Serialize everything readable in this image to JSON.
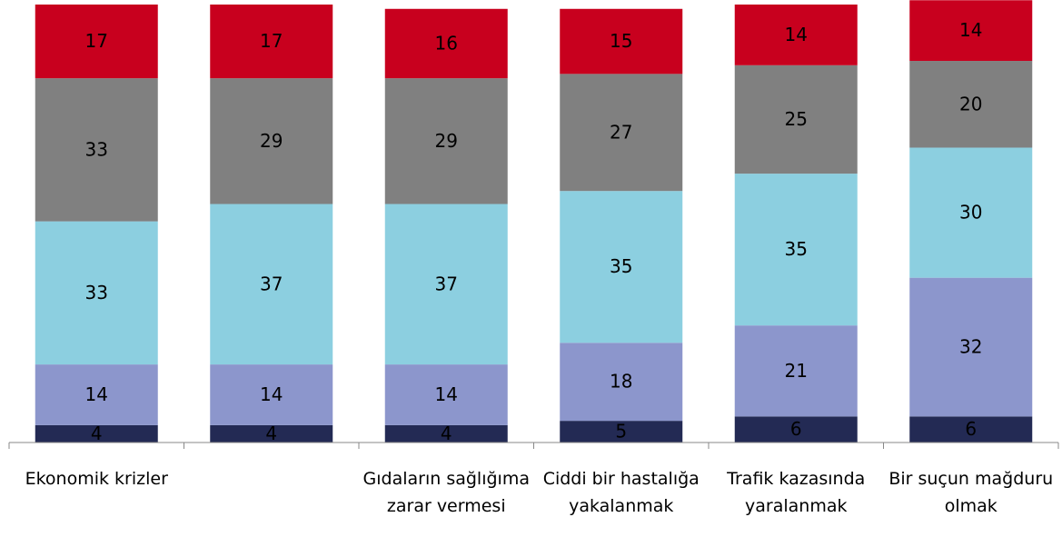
{
  "chart_data": {
    "type": "stacked_bar",
    "categories": [
      "Ekonomik krizler",
      null,
      "Gıdaların sağlığıma zarar vermesi",
      "Ciddi bir hastalığa yakalanmak",
      "Trafik kazasında yaralanmak",
      "Bir suçun mağduru olmak"
    ],
    "series": [
      {
        "color": "#232a54",
        "values": [
          4,
          4,
          4,
          5,
          6,
          6
        ]
      },
      {
        "color": "#8c96cc",
        "values": [
          14,
          14,
          14,
          18,
          21,
          32
        ]
      },
      {
        "color": "#8ccfe0",
        "values": [
          33,
          37,
          37,
          35,
          35,
          30
        ]
      },
      {
        "color": "#808080",
        "values": [
          33,
          29,
          29,
          27,
          25,
          20
        ]
      },
      {
        "color": "#c8001e",
        "values": [
          17,
          17,
          16,
          15,
          14,
          14
        ]
      }
    ],
    "ylim": [
      0,
      101
    ]
  }
}
